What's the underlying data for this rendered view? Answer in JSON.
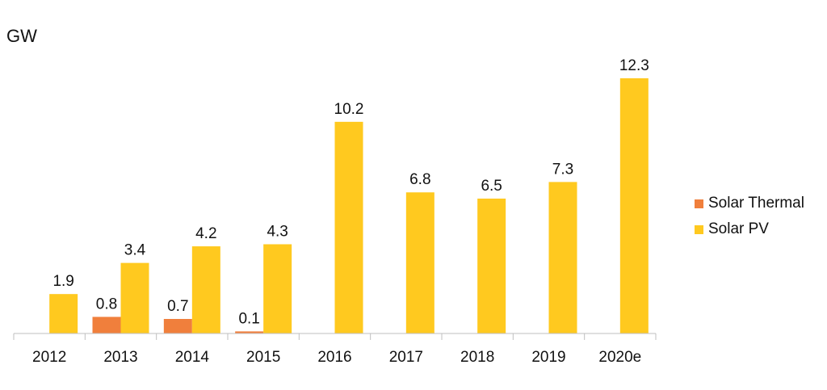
{
  "chart_data": {
    "type": "bar",
    "ylabel": "GW",
    "categories": [
      "2012",
      "2013",
      "2014",
      "2015",
      "2016",
      "2017",
      "2018",
      "2019",
      "2020e"
    ],
    "series": [
      {
        "name": "Solar Thermal",
        "color": "#F07F3C",
        "values": [
          null,
          0.8,
          0.7,
          0.1,
          null,
          null,
          null,
          null,
          null
        ],
        "labels": [
          "",
          "0.8",
          "0.7",
          "0.1",
          "",
          "",
          "",
          "",
          ""
        ]
      },
      {
        "name": "Solar PV",
        "color": "#FFC91F",
        "values": [
          1.9,
          3.4,
          4.2,
          4.3,
          10.2,
          6.8,
          6.5,
          7.3,
          12.3
        ],
        "labels": [
          "1.9",
          "3.4",
          "4.2",
          "4.3",
          "10.2",
          "6.8",
          "6.5",
          "7.3",
          "12.3"
        ]
      }
    ],
    "grid": false,
    "legend_position": "right"
  }
}
